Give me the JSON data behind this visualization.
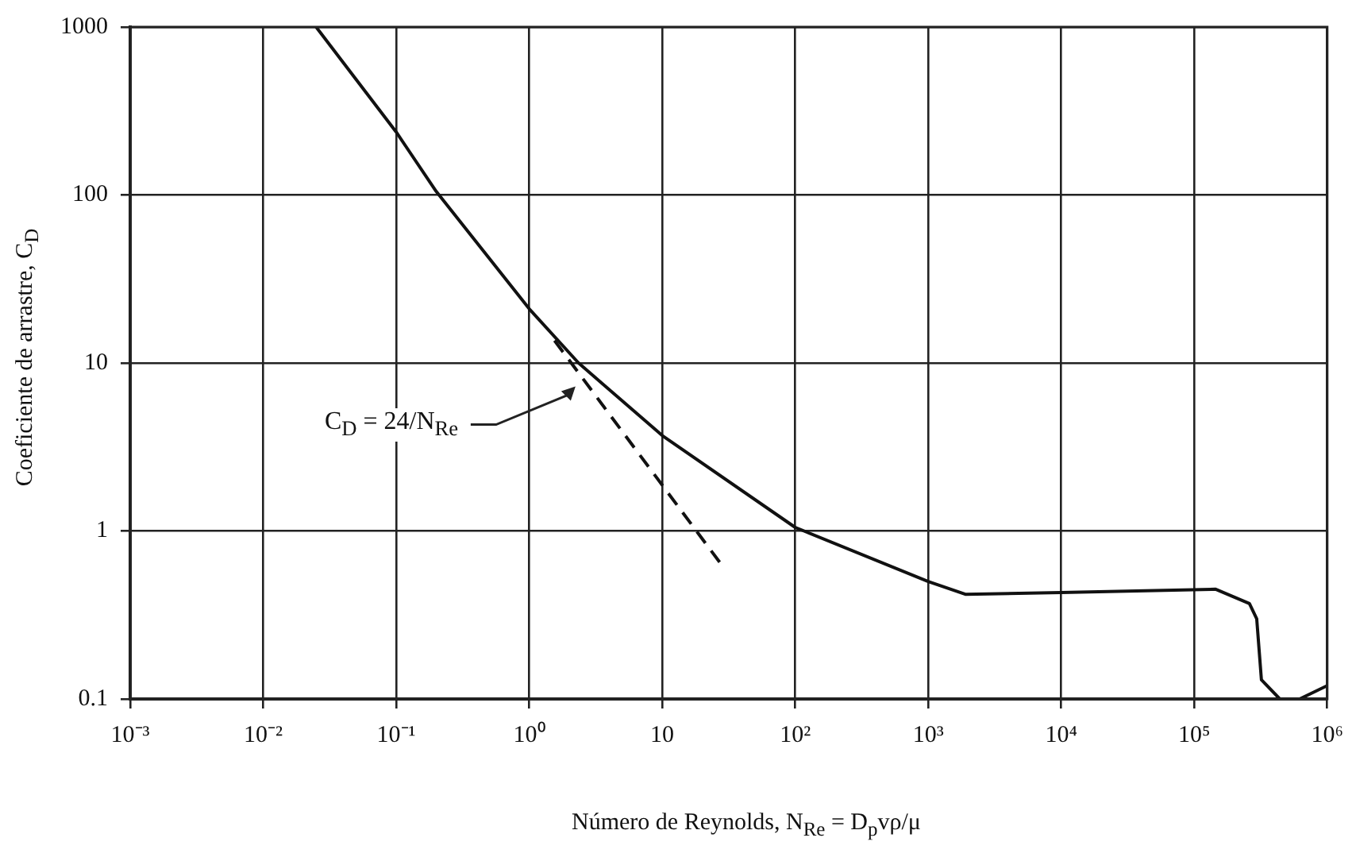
{
  "chart_data": {
    "type": "line",
    "xlabel": "Número de Reynolds, N$_{Re}$ = D$_{p}$vρ/μ",
    "ylabel": "Coeficiente de arrastre, C$_{D}$",
    "log": "xy",
    "grid": true,
    "marker": "none",
    "xlim": [
      0.001,
      1000000
    ],
    "ylim": [
      0.1,
      1000
    ],
    "xticks": [
      {
        "value": 0.001,
        "label": "10⁻³"
      },
      {
        "value": 0.01,
        "label": "10⁻²"
      },
      {
        "value": 0.1,
        "label": "10⁻¹"
      },
      {
        "value": 1,
        "label": "10⁰"
      },
      10,
      {
        "value": 100,
        "label": "10²"
      },
      {
        "value": 1000,
        "label": "10³"
      },
      {
        "value": 10000,
        "label": "10⁴"
      },
      {
        "value": 100000,
        "label": "10⁵"
      },
      {
        "value": 1000000,
        "label": "10⁶"
      }
    ],
    "yticks": [
      0.1,
      1,
      10,
      100,
      1000
    ],
    "series": [
      {
        "line_style": "solid",
        "color": "#111111",
        "x": [
          0.025,
          0.1,
          0.2,
          1,
          2.35,
          10,
          100,
          1000,
          1900,
          10000,
          145000,
          260000,
          295000,
          320000,
          440000,
          620000,
          1000000
        ],
        "values": [
          1000,
          237,
          105,
          21,
          10,
          3.7,
          1.05,
          0.5,
          0.42,
          0.43,
          0.45,
          0.37,
          0.3,
          0.13,
          0.1,
          0.1,
          0.12
        ]
      },
      {
        "line_style": "dashed",
        "color": "#111111",
        "x": [
          1.55,
          27.5
        ],
        "values": [
          13.6,
          0.64
        ]
      }
    ],
    "annotations": [
      "C$_{D}$ = 24/N$_{Re}$"
    ]
  }
}
